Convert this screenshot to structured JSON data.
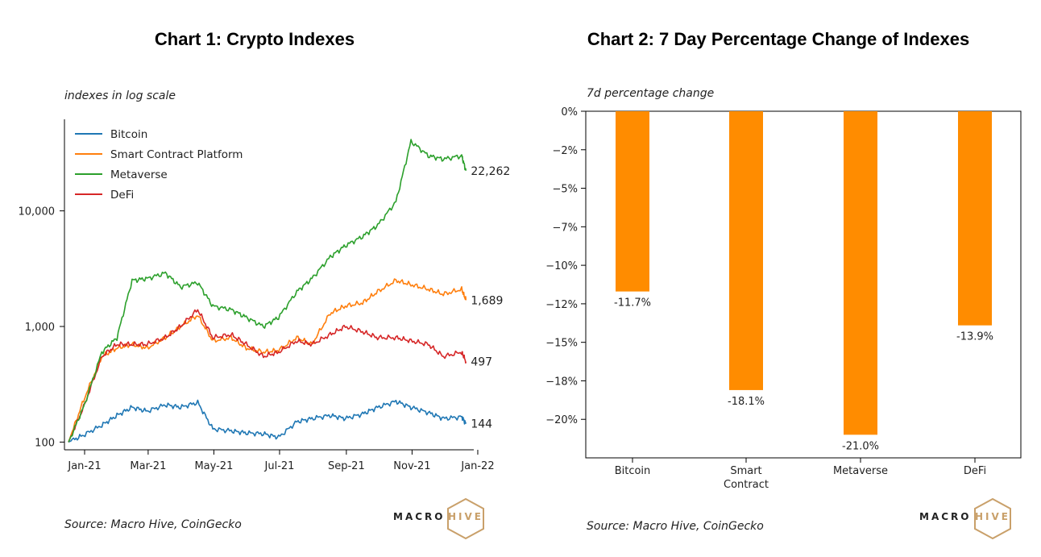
{
  "chart_data": [
    {
      "type": "line",
      "title": "Chart 1: Crypto Indexes",
      "subtitle": "indexes in log scale",
      "yscale": "log",
      "ylim": [
        90,
        60000
      ],
      "yticks": [
        100,
        1000,
        10000
      ],
      "yticklabels": [
        "100",
        "1,000",
        "10,000"
      ],
      "xlim": [
        "2021-01-01",
        "2022-01-10"
      ],
      "xticklabels": [
        "Jan-21",
        "Mar-21",
        "May-21",
        "Jul-21",
        "Sep-21",
        "Nov-21",
        "Jan-22"
      ],
      "x": [
        "2021-01-01",
        "2021-01-15",
        "2021-02-01",
        "2021-02-15",
        "2021-03-01",
        "2021-03-15",
        "2021-04-01",
        "2021-04-15",
        "2021-05-01",
        "2021-05-15",
        "2021-06-01",
        "2021-06-15",
        "2021-07-01",
        "2021-07-15",
        "2021-08-01",
        "2021-08-15",
        "2021-09-01",
        "2021-09-15",
        "2021-10-01",
        "2021-10-15",
        "2021-11-01",
        "2021-11-15",
        "2021-12-01",
        "2021-12-15",
        "2022-01-01",
        "2022-01-05"
      ],
      "series": [
        {
          "name": "Bitcoin",
          "color": "#1f77b4",
          "values": [
            100,
            115,
            140,
            170,
            200,
            185,
            210,
            200,
            220,
            130,
            125,
            120,
            118,
            110,
            150,
            160,
            170,
            160,
            175,
            200,
            225,
            200,
            180,
            160,
            165,
            144
          ]
        },
        {
          "name": "Smart Contract Platform",
          "color": "#ff7f0e",
          "values": [
            100,
            230,
            550,
            650,
            700,
            650,
            800,
            1000,
            1250,
            750,
            800,
            650,
            600,
            620,
            800,
            700,
            1300,
            1500,
            1600,
            2000,
            2500,
            2300,
            2100,
            1900,
            2100,
            1689
          ]
        },
        {
          "name": "Metaverse",
          "color": "#2ca02c",
          "values": [
            100,
            200,
            600,
            800,
            2500,
            2600,
            2900,
            2200,
            2400,
            1500,
            1400,
            1200,
            1000,
            1200,
            2000,
            2600,
            4000,
            5000,
            6000,
            7500,
            12000,
            40000,
            30000,
            28000,
            30000,
            22262
          ]
        },
        {
          "name": "DeFi",
          "color": "#d62728",
          "values": [
            100,
            200,
            550,
            700,
            700,
            700,
            800,
            1000,
            1400,
            800,
            850,
            700,
            550,
            600,
            750,
            700,
            850,
            1000,
            900,
            800,
            800,
            750,
            700,
            550,
            600,
            497
          ]
        }
      ],
      "end_labels": [
        "144",
        "1,689",
        "22,262",
        "497"
      ],
      "legend": "top-left",
      "source": "Source: Macro Hive, CoinGecko"
    },
    {
      "type": "bar",
      "title": "Chart 2: 7 Day Percentage Change of Indexes",
      "subtitle": "7d percentage change",
      "categories": [
        "Bitcoin",
        "Smart\nContract",
        "Metaverse",
        "DeFi"
      ],
      "values": [
        -11.7,
        -18.1,
        -21.0,
        -13.9
      ],
      "value_labels": [
        "-11.7%",
        "-18.1%",
        "-21.0%",
        "-13.9%"
      ],
      "ylim": [
        -22.5,
        0
      ],
      "yticks": [
        0,
        -2.5,
        -5,
        -7.5,
        -10,
        -12.5,
        -15,
        -17.5,
        -20
      ],
      "yticklabels": [
        "0%",
        "−2%",
        "−5%",
        "−7%",
        "−10%",
        "−12%",
        "−15%",
        "−18%",
        "−20%"
      ],
      "bar_color": "#ff8c00",
      "source": "Source: Macro Hive, CoinGecko"
    }
  ],
  "brand": {
    "left": "MACRO",
    "right": "HIVE",
    "hex_color": "#c9a06a"
  }
}
